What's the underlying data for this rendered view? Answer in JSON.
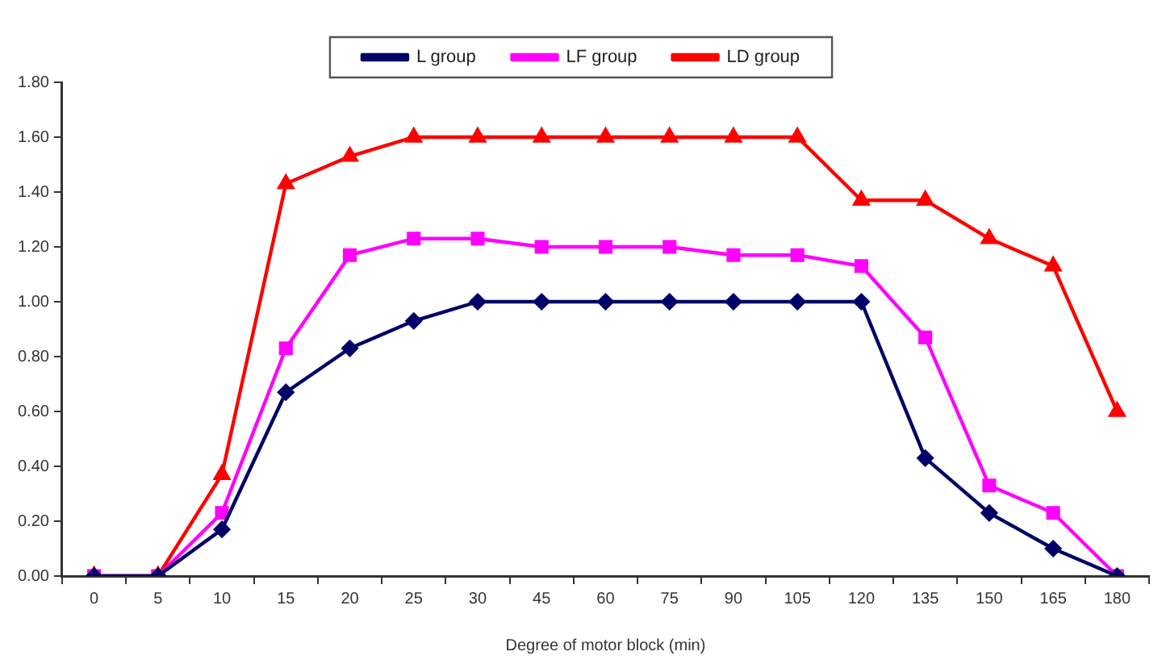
{
  "chart_data": {
    "type": "line",
    "xlabel": "Degree of motor block (min)",
    "categories": [
      "0",
      "5",
      "10",
      "15",
      "20",
      "25",
      "30",
      "45",
      "60",
      "75",
      "90",
      "105",
      "120",
      "135",
      "150",
      "165",
      "180"
    ],
    "series": [
      {
        "name": "L group",
        "color": "#000066",
        "marker": "diamond",
        "values": [
          0,
          0,
          0.17,
          0.67,
          0.83,
          0.93,
          1.0,
          1.0,
          1.0,
          1.0,
          1.0,
          1.0,
          1.0,
          0.43,
          0.23,
          0.1,
          0
        ]
      },
      {
        "name": "LF group",
        "color": "#ff00ff",
        "marker": "square",
        "values": [
          0,
          0,
          0.23,
          0.83,
          1.17,
          1.23,
          1.23,
          1.2,
          1.2,
          1.2,
          1.17,
          1.17,
          1.13,
          0.87,
          0.33,
          0.23,
          0
        ]
      },
      {
        "name": "LD group",
        "color": "#ff0000",
        "marker": "triangle",
        "values": [
          0,
          0,
          0.37,
          1.43,
          1.53,
          1.6,
          1.6,
          1.6,
          1.6,
          1.6,
          1.6,
          1.6,
          1.37,
          1.37,
          1.23,
          1.13,
          0.6
        ]
      }
    ],
    "ylim": [
      0,
      1.8
    ],
    "yticks": [
      {
        "value": 0,
        "label": "0.00"
      },
      {
        "value": 0.2,
        "label": "0.20"
      },
      {
        "value": 0.4,
        "label": "0.40"
      },
      {
        "value": 0.6,
        "label": "0.60"
      },
      {
        "value": 0.8,
        "label": "0.80"
      },
      {
        "value": 1,
        "label": "1.00"
      },
      {
        "value": 1.2,
        "label": "1.20"
      },
      {
        "value": 1.4,
        "label": "1.40"
      },
      {
        "value": 1.6,
        "label": "1.60"
      },
      {
        "value": 1.8,
        "label": "1.80"
      }
    ],
    "grid": false,
    "legend": "top",
    "line_style": "solid"
  }
}
